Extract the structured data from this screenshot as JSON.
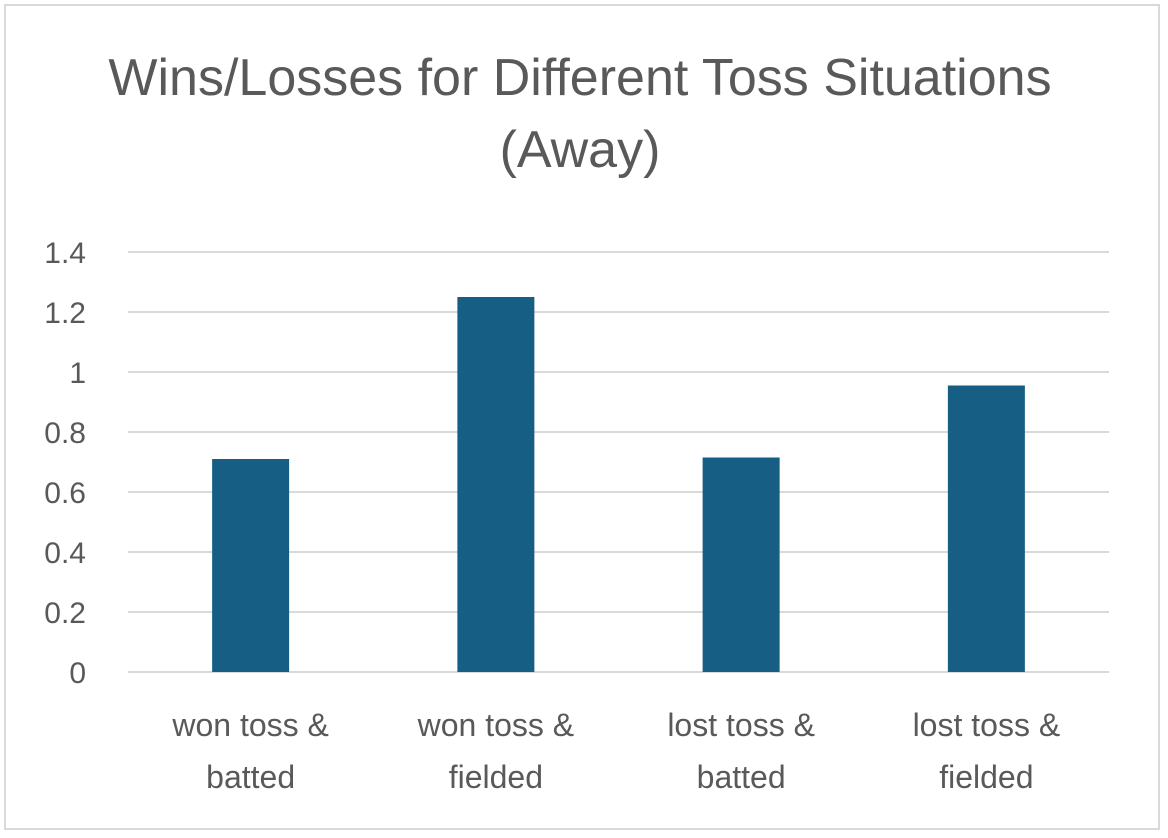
{
  "chart_data": {
    "type": "bar",
    "title": "Wins/Losses for Different Toss Situations (Away)",
    "categories": [
      [
        "won toss &",
        "batted"
      ],
      [
        "won toss &",
        "fielded"
      ],
      [
        "lost toss &",
        "batted"
      ],
      [
        "lost toss &",
        "fielded"
      ]
    ],
    "values": [
      0.71,
      1.25,
      0.715,
      0.955
    ],
    "ylim": [
      0,
      1.4
    ],
    "yticks": [
      "0",
      "0.2",
      "0.4",
      "0.6",
      "0.8",
      "1",
      "1.2",
      "1.4"
    ],
    "grid": true,
    "legend": "none",
    "bar_color": "#165e83",
    "grid_color": "#d9d9d9",
    "text_color": "#595959"
  }
}
